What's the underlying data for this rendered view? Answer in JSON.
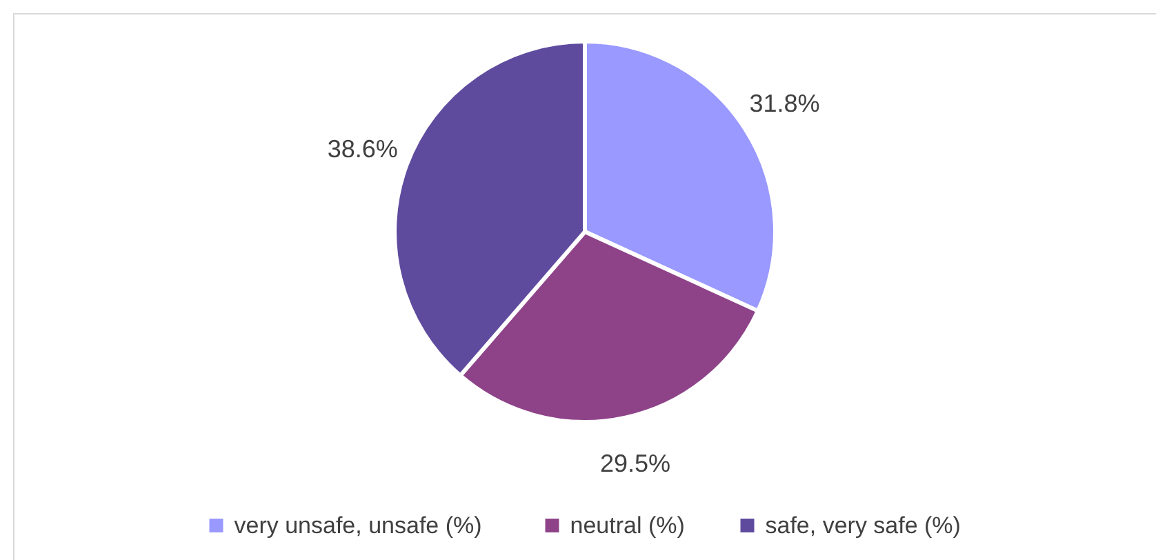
{
  "chart_data": {
    "type": "pie",
    "categories": [
      "very unsafe, unsafe (%)",
      "neutral (%)",
      "safe, very safe (%)"
    ],
    "values": [
      31.8,
      29.5,
      38.6
    ],
    "colors": [
      "#9999ff",
      "#8e4389",
      "#5f4b9e"
    ],
    "value_labels": [
      "31.8%",
      "29.5%",
      "38.6%"
    ],
    "legend": "bottom"
  }
}
